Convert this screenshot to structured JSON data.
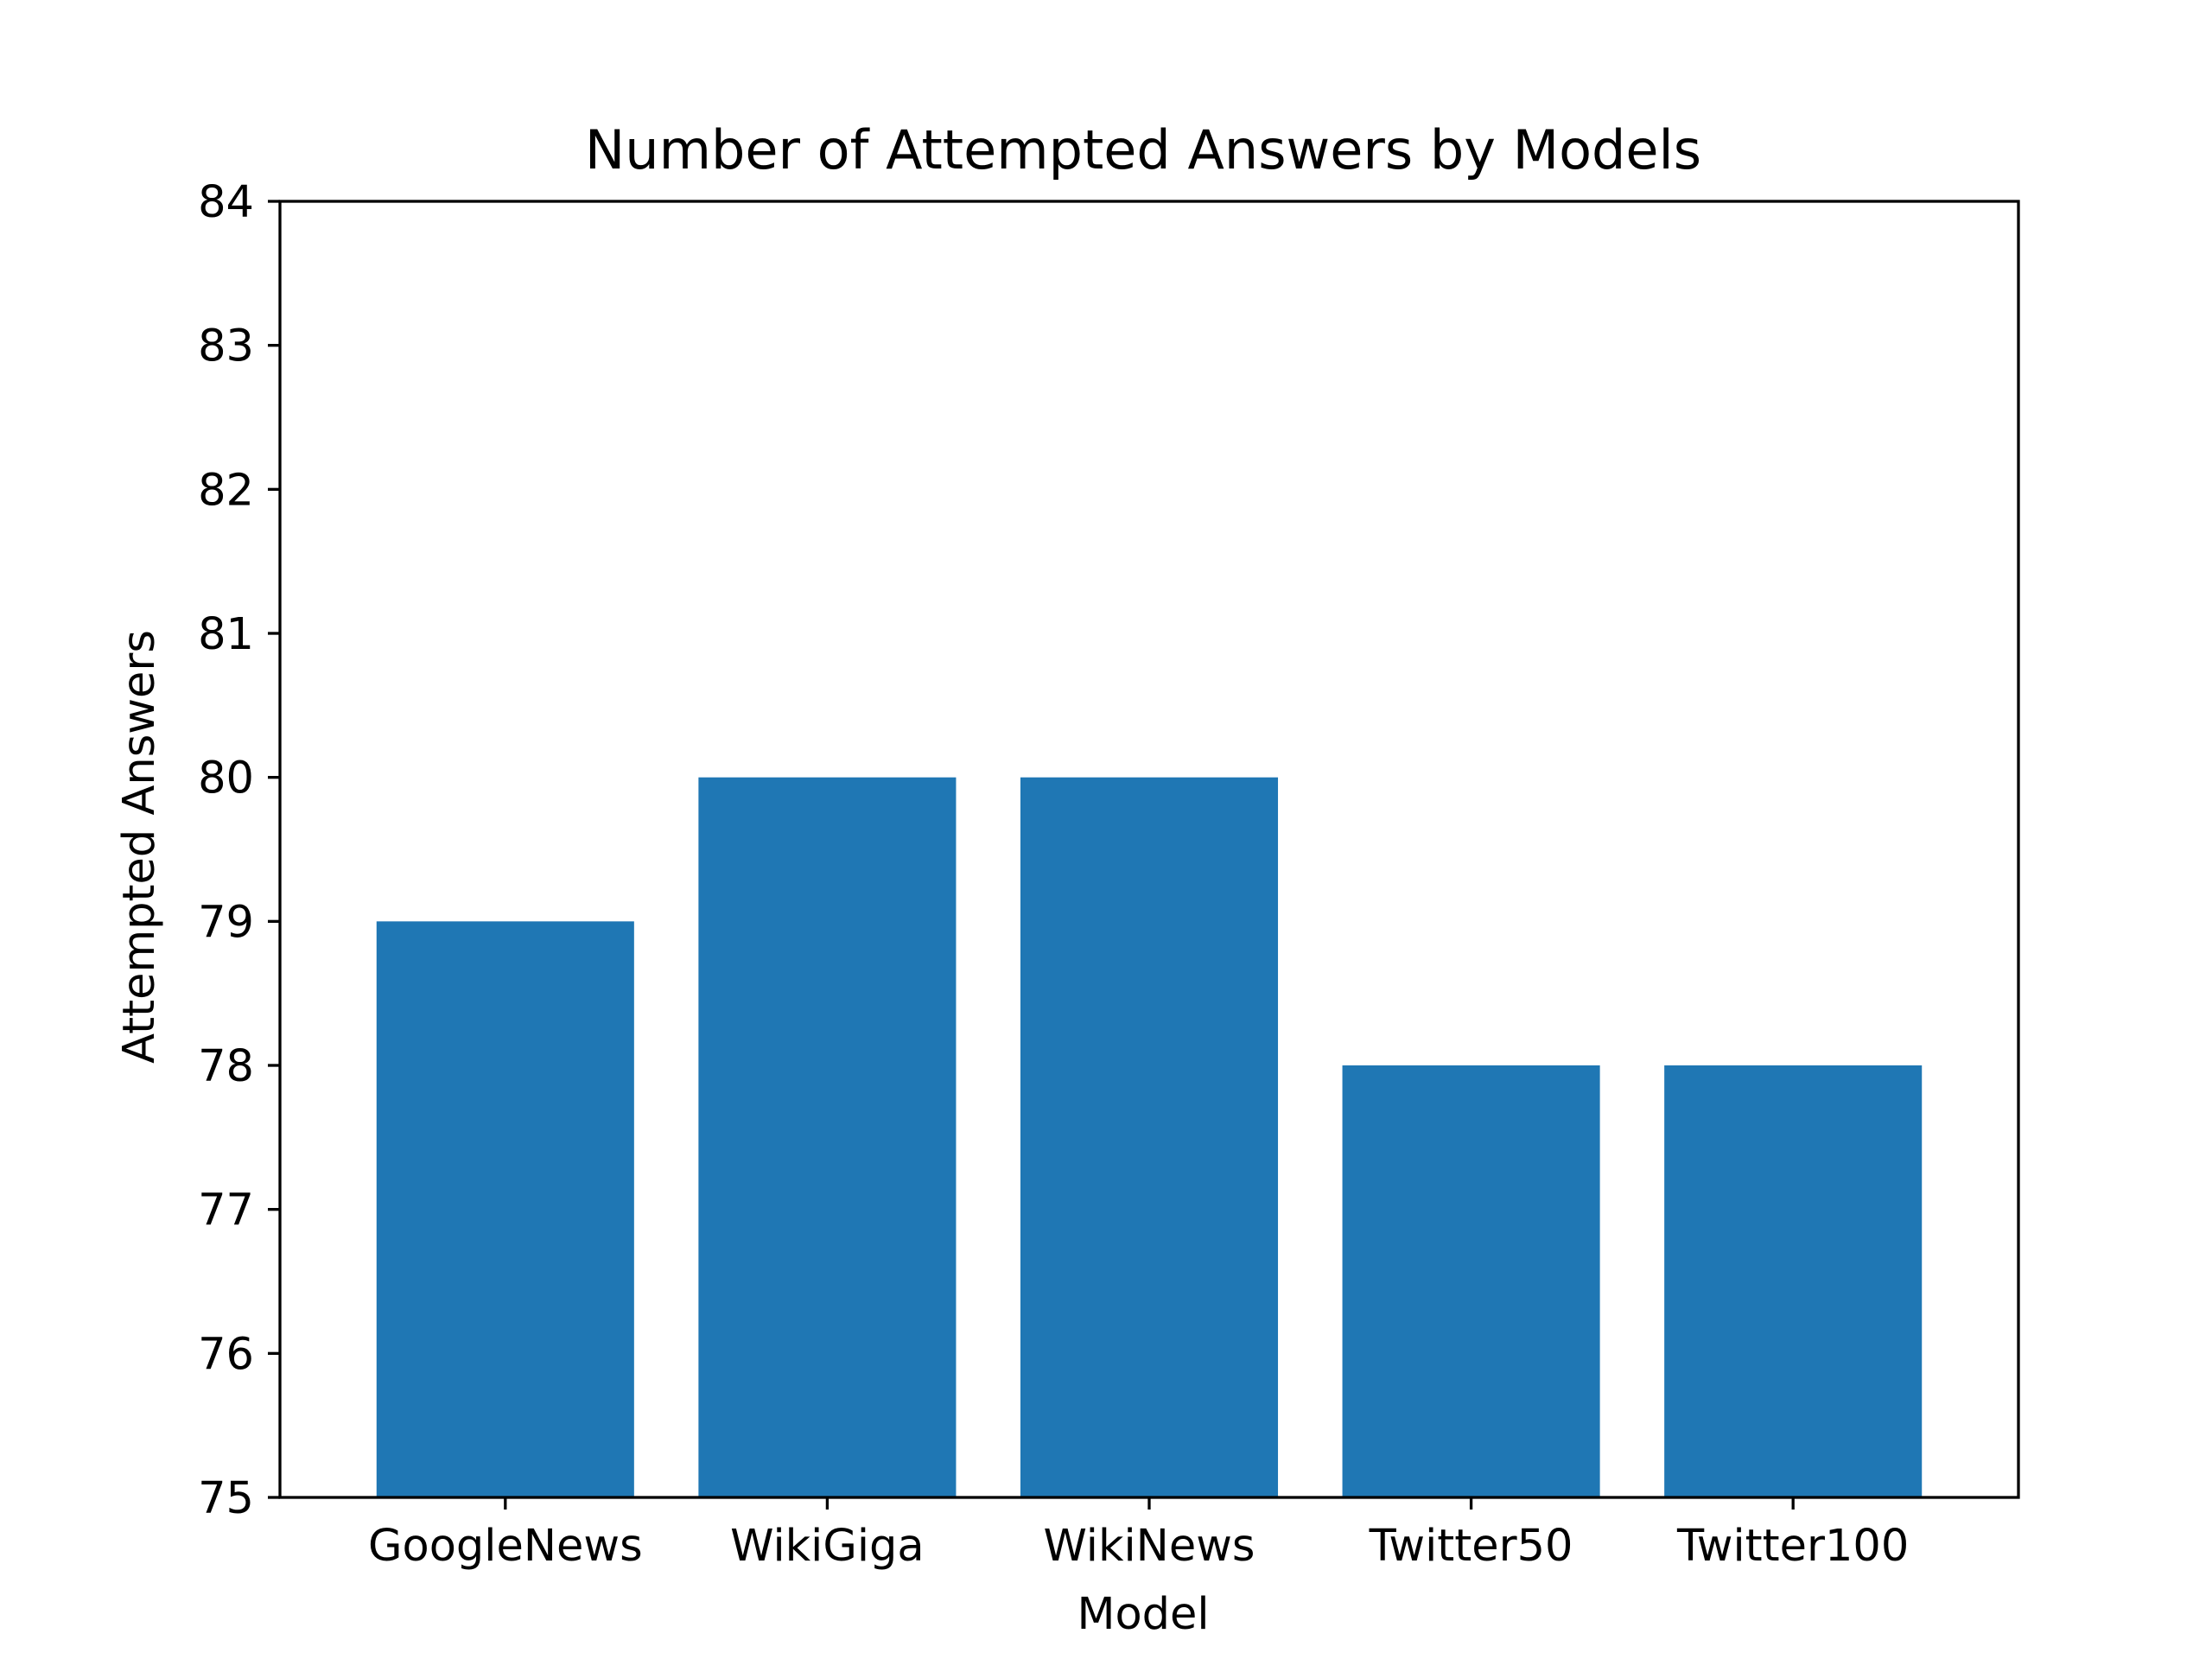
{
  "chart_data": {
    "type": "bar",
    "title": "Number of Attempted Answers by Models",
    "xlabel": "Model",
    "ylabel": "Attempted Answers",
    "categories": [
      "GoogleNews",
      "WikiGiga",
      "WikiNews",
      "Twitter50",
      "Twitter100"
    ],
    "values": [
      79,
      80,
      80,
      78,
      78
    ],
    "ylim": [
      75,
      84
    ],
    "yticks": [
      "75",
      "76",
      "77",
      "78",
      "79",
      "80",
      "81",
      "82",
      "83",
      "84"
    ],
    "bar_color": "#1f77b4",
    "grid": false,
    "legend": "none"
  }
}
